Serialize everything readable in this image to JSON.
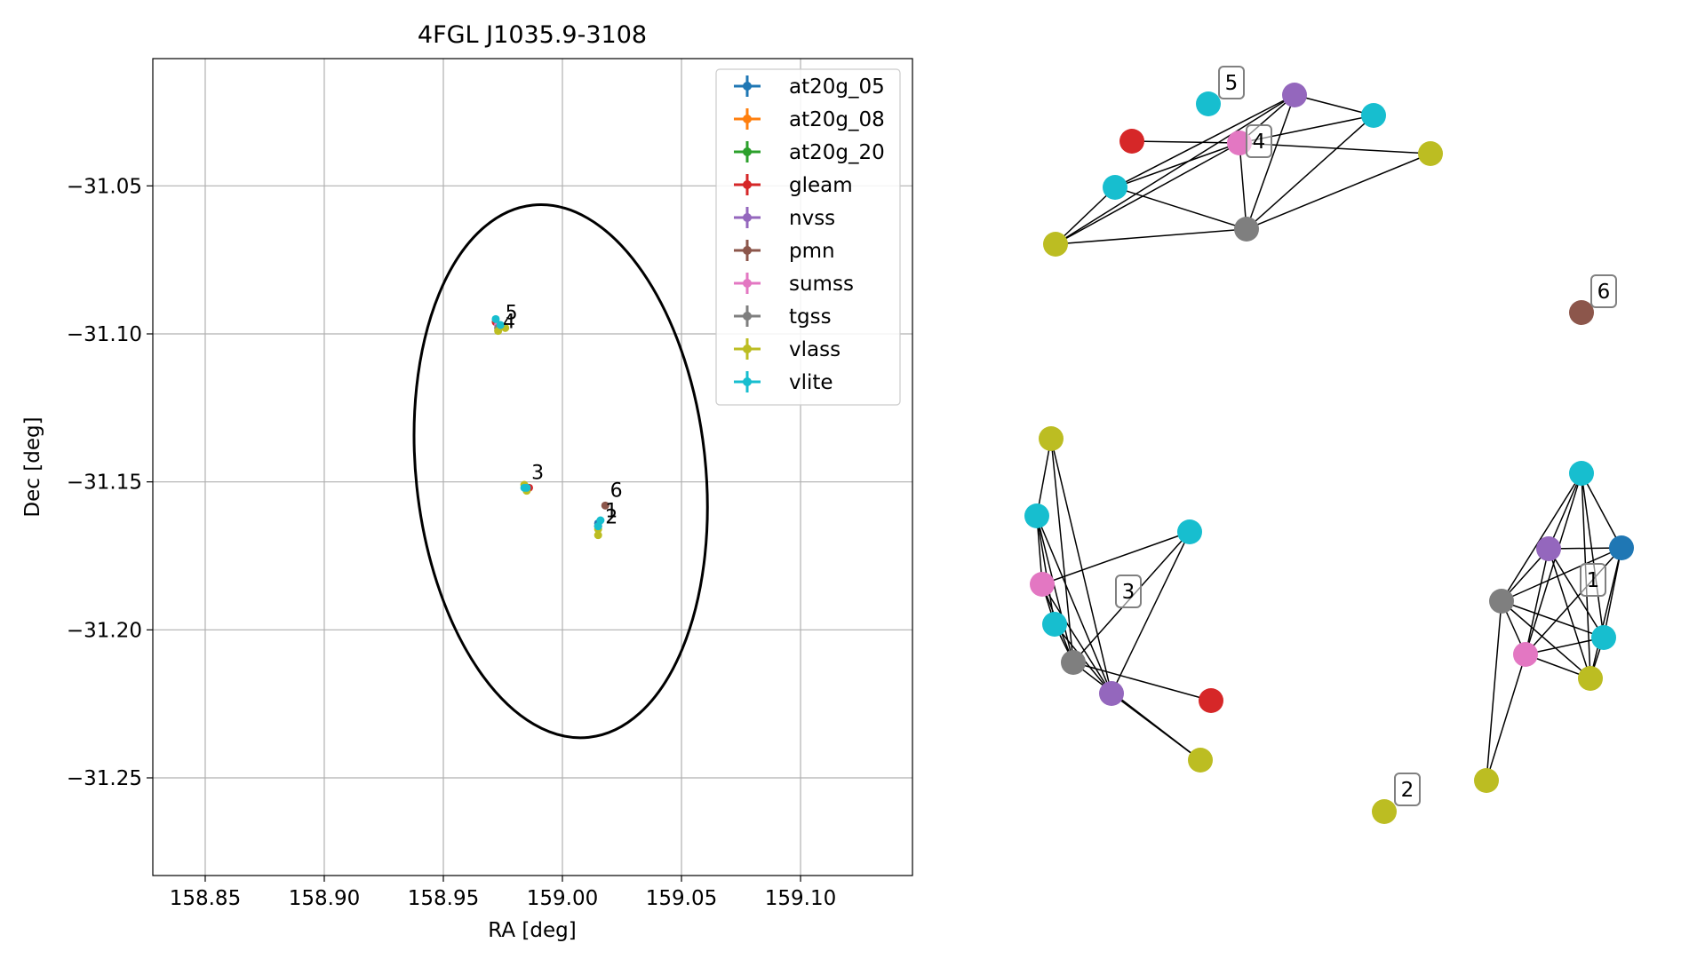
{
  "chart_data": [
    {
      "type": "scatter",
      "title": "4FGL J1035.9-3108",
      "xlabel": "RA [deg]",
      "ylabel": "Dec [deg]",
      "xlim": [
        158.828,
        159.147
      ],
      "ylim": [
        -31.283,
        -31.007
      ],
      "xticks": [
        158.85,
        158.9,
        158.95,
        159.0,
        159.05,
        159.1
      ],
      "xtick_labels": [
        "158.85",
        "158.90",
        "158.95",
        "159.00",
        "159.05",
        "159.10"
      ],
      "yticks": [
        -31.05,
        -31.1,
        -31.15,
        -31.2,
        -31.25
      ],
      "ytick_labels": [
        "−31.05",
        "−31.10",
        "−31.15",
        "−31.20",
        "−31.25"
      ],
      "grid": true,
      "legend_position": "top-right",
      "ellipse": {
        "center": [
          158.9993,
          -31.1464
        ],
        "semi_major_ra": 0.0608,
        "semi_minor_dec": 0.0904,
        "color": "#000000"
      },
      "series": [
        {
          "name": "at20g_05",
          "color": "#1f77b4",
          "points": [
            [
              159.015,
              -31.164
            ]
          ]
        },
        {
          "name": "at20g_08",
          "color": "#ff7f0e",
          "points": []
        },
        {
          "name": "at20g_20",
          "color": "#2ca02c",
          "points": []
        },
        {
          "name": "gleam",
          "color": "#d62728",
          "points": [
            [
              158.972,
              -31.096
            ],
            [
              158.986,
              -31.152
            ]
          ]
        },
        {
          "name": "nvss",
          "color": "#9467bd",
          "points": [
            [
              158.973,
              -31.097
            ],
            [
              158.985,
              -31.152
            ],
            [
              159.015,
              -31.165
            ]
          ]
        },
        {
          "name": "pmn",
          "color": "#8c564b",
          "points": [
            [
              159.018,
              -31.158
            ]
          ]
        },
        {
          "name": "sumss",
          "color": "#e377c2",
          "points": [
            [
              158.973,
              -31.097
            ],
            [
              158.985,
              -31.152
            ],
            [
              159.015,
              -31.165
            ]
          ]
        },
        {
          "name": "tgss",
          "color": "#7f7f7f",
          "points": [
            [
              158.973,
              -31.098
            ],
            [
              158.985,
              -31.152
            ],
            [
              159.015,
              -31.165
            ]
          ]
        },
        {
          "name": "vlass",
          "color": "#bcbd22",
          "points": [
            [
              158.976,
              -31.098
            ],
            [
              158.973,
              -31.099
            ],
            [
              158.984,
              -31.151
            ],
            [
              158.985,
              -31.153
            ],
            [
              159.015,
              -31.166
            ],
            [
              159.015,
              -31.168
            ]
          ]
        },
        {
          "name": "vlite",
          "color": "#17becf",
          "points": [
            [
              158.972,
              -31.095
            ],
            [
              158.974,
              -31.097
            ],
            [
              158.984,
              -31.152
            ],
            [
              158.985,
              -31.152
            ],
            [
              159.016,
              -31.163
            ],
            [
              159.015,
              -31.165
            ]
          ]
        }
      ],
      "annotations": [
        {
          "text": "5",
          "x": 158.976,
          "y": -31.095
        },
        {
          "text": "4",
          "x": 158.975,
          "y": -31.098
        },
        {
          "text": "3",
          "x": 158.987,
          "y": -31.149
        },
        {
          "text": "6",
          "x": 159.02,
          "y": -31.155
        },
        {
          "text": "1",
          "x": 159.018,
          "y": -31.162
        },
        {
          "text": "2",
          "x": 159.018,
          "y": -31.164
        }
      ]
    },
    {
      "type": "network",
      "groups": [
        {
          "label": "5",
          "nodes": [
            "vlite"
          ]
        },
        {
          "label": "4",
          "nodes": [
            "nvss",
            "vlite",
            "gleam",
            "sumss",
            "vlass",
            "vlite",
            "tgss",
            "vlass"
          ]
        },
        {
          "label": "6",
          "nodes": [
            "pmn"
          ]
        },
        {
          "label": "3",
          "nodes": [
            "vlass",
            "vlite",
            "vlite",
            "sumss",
            "vlite",
            "tgss",
            "nvss",
            "gleam",
            "vlass"
          ]
        },
        {
          "label": "1",
          "nodes": [
            "vlite",
            "nvss",
            "at20g_05",
            "tgss",
            "vlite",
            "sumss",
            "vlass",
            "vlass"
          ]
        },
        {
          "label": "2",
          "nodes": [
            "vlass"
          ]
        }
      ]
    }
  ]
}
